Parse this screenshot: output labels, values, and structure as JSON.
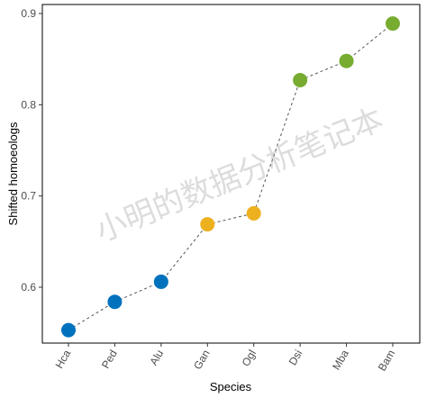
{
  "chart_data": {
    "type": "scatter",
    "xlabel": "Species",
    "ylabel": "Shifted homoeologs",
    "categories": [
      "Hca",
      "Ped",
      "Alu",
      "Gan",
      "Ogl",
      "Dsi",
      "Mba",
      "Bam"
    ],
    "values": [
      0.553,
      0.584,
      0.606,
      0.669,
      0.681,
      0.827,
      0.848,
      0.889
    ],
    "point_colors": [
      "#0072bd",
      "#0072bd",
      "#0072bd",
      "#edb120",
      "#edb120",
      "#77ac30",
      "#77ac30",
      "#77ac30"
    ],
    "ylim": [
      0.54,
      0.91
    ],
    "yticks": [
      0.6,
      0.7,
      0.8,
      0.9
    ],
    "connector": "dashed",
    "grid": false,
    "legend": "none"
  },
  "watermark": "小明的数据分析笔记本"
}
